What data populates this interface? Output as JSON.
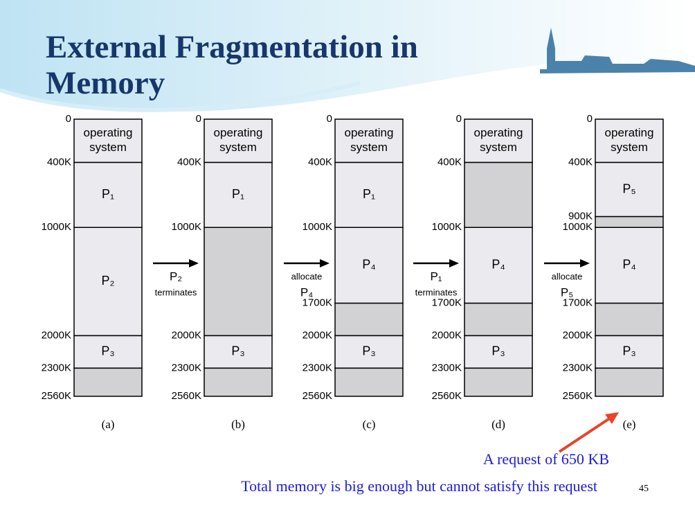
{
  "title": "External Fragmentation in Memory",
  "columns": [
    {
      "caption": "(a)",
      "addresses": [
        "0",
        "400K",
        "1000K",
        "2000K",
        "2300K",
        "2560K"
      ],
      "blocks": [
        [
          "operating",
          "system"
        ],
        [
          "P₁"
        ],
        [
          "P₂"
        ],
        [
          "P₃"
        ],
        null
      ]
    },
    {
      "caption": "(b)",
      "addresses": [
        "0",
        "400K",
        "1000K",
        "2000K",
        "2300K",
        "2560K"
      ],
      "blocks": [
        [
          "operating",
          "system"
        ],
        [
          "P₁"
        ],
        null,
        [
          "P₃"
        ],
        null
      ]
    },
    {
      "caption": "(c)",
      "addresses": [
        "0",
        "400K",
        "1000K",
        "1700K",
        "2000K",
        "2300K",
        "2560K"
      ],
      "blocks": [
        [
          "operating",
          "system"
        ],
        [
          "P₁"
        ],
        [
          "P₄"
        ],
        null,
        [
          "P₃"
        ],
        null
      ]
    },
    {
      "caption": "(d)",
      "addresses": [
        "0",
        "400K",
        "1000K",
        "1700K",
        "2000K",
        "2300K",
        "2560K"
      ],
      "blocks": [
        [
          "operating",
          "system"
        ],
        null,
        [
          "P₄"
        ],
        null,
        [
          "P₃"
        ],
        null
      ]
    },
    {
      "caption": "(e)",
      "addresses": [
        "0",
        "400K",
        "900K",
        "1000K",
        "1700K",
        "2000K",
        "2300K",
        "2560K"
      ],
      "blocks": [
        [
          "operating",
          "system"
        ],
        [
          "P₅"
        ],
        null,
        [
          "P₄"
        ],
        null,
        [
          "P₃"
        ],
        null
      ]
    }
  ],
  "transitions": [
    [
      "P₂",
      "terminates"
    ],
    [
      "allocate",
      "P₄"
    ],
    [
      "P₁",
      "terminates"
    ],
    [
      "allocate",
      "P₅"
    ]
  ],
  "request_note": "A request of 650 KB",
  "conclusion": "Total memory is big enough but cannot satisfy this request",
  "page_number": "45"
}
